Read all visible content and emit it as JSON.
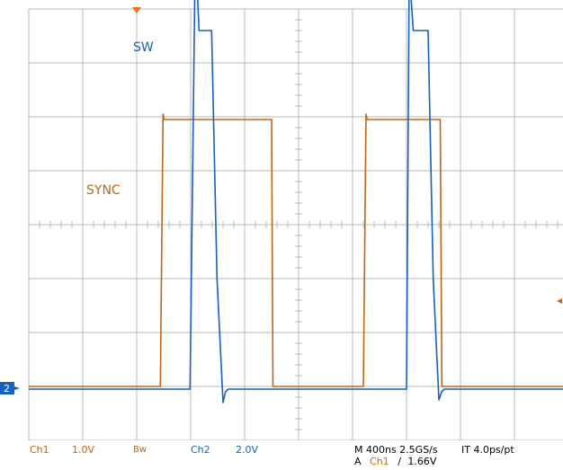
{
  "colors": {
    "ch1": "#c0661a",
    "ch2": "#1560c0",
    "grid": "#b8b8b8",
    "background": "#ffffff"
  },
  "chart_data": {
    "type": "line",
    "title": "",
    "grid": true,
    "time_per_div_ns": 400,
    "x_unit": "ns",
    "x_range_ns": [
      0,
      4000
    ],
    "series": [
      {
        "name": "SYNC",
        "channel": "Ch1",
        "volts_per_div": 1.0,
        "y_range_div": [
          -4,
          4
        ],
        "points": [
          [
            0,
            -3.0
          ],
          [
            975,
            -3.0
          ],
          [
            995,
            2.05
          ],
          [
            1003,
            1.95
          ],
          [
            1800,
            1.95
          ],
          [
            1810,
            -3.0
          ],
          [
            2480,
            -3.0
          ],
          [
            2500,
            2.05
          ],
          [
            2508,
            1.95
          ],
          [
            3050,
            1.95
          ],
          [
            3062,
            -3.0
          ],
          [
            4000,
            -3.0
          ]
        ]
      },
      {
        "name": "SW",
        "channel": "Ch2",
        "volts_per_div": 2.0,
        "y_range_div": [
          -4,
          4
        ],
        "points": [
          [
            0,
            -3.05
          ],
          [
            1195,
            -3.05
          ],
          [
            1232,
            4.6
          ],
          [
            1240,
            5.7
          ],
          [
            1250,
            4.3
          ],
          [
            1262,
            3.6
          ],
          [
            1355,
            3.6
          ],
          [
            1395,
            -1.0
          ],
          [
            1440,
            -3.3
          ],
          [
            1458,
            -3.1
          ],
          [
            1480,
            -3.05
          ],
          [
            2800,
            -3.05
          ],
          [
            2820,
            4.7
          ],
          [
            2826,
            5.75
          ],
          [
            2834,
            4.2
          ],
          [
            2850,
            3.6
          ],
          [
            2960,
            3.6
          ],
          [
            2998,
            -1.0
          ],
          [
            3040,
            -3.25
          ],
          [
            3060,
            -3.1
          ],
          [
            3080,
            -3.05
          ],
          [
            4000,
            -3.05
          ]
        ]
      }
    ]
  },
  "labels": {
    "sw": "SW",
    "sync": "SYNC",
    "ch2_marker": "2"
  },
  "readout": {
    "ch1": "Ch1",
    "ch1_scale": "1.0V",
    "bw": "Bw",
    "ch2": "Ch2",
    "ch2_scale": "2.0V",
    "timebase": "M 400ns 2.5GS/s",
    "interp": "IT 4.0ps/pt",
    "trigger_prefix": "A",
    "trigger_channel": "Ch1",
    "trigger_slope": "∕",
    "trigger_level": "1.66V"
  }
}
